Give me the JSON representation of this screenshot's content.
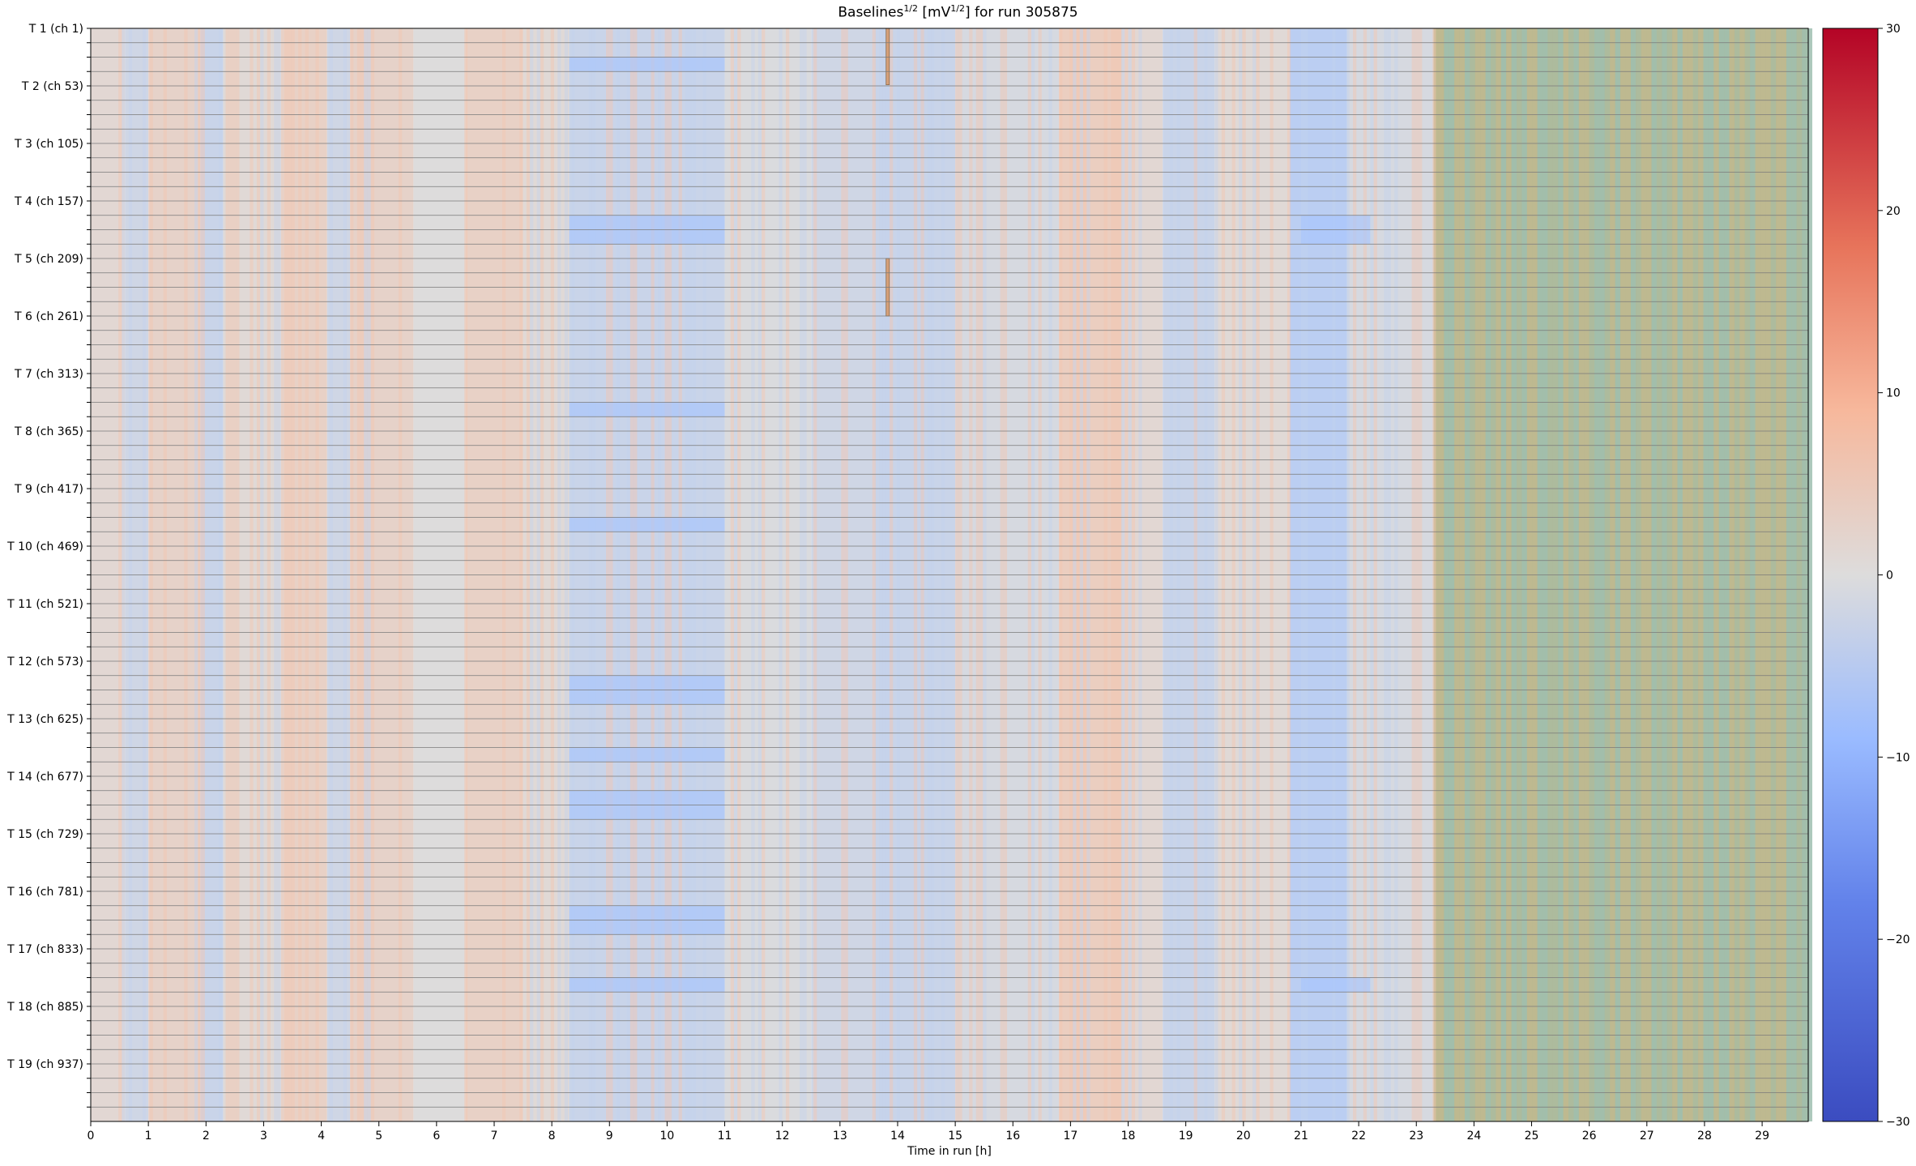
{
  "chart_data": {
    "type": "heatmap",
    "title": {
      "pre": "Baselines",
      "sup1": "1/2",
      "mid": " [mV",
      "sup2": "1/2",
      "post": "] for run 305875"
    },
    "xlabel": "Time in run [h]",
    "xlim": [
      0,
      29.8
    ],
    "x_ticks": [
      0,
      1,
      2,
      3,
      4,
      5,
      6,
      7,
      8,
      9,
      10,
      11,
      12,
      13,
      14,
      15,
      16,
      17,
      18,
      19,
      20,
      21,
      22,
      23,
      24,
      25,
      26,
      27,
      28,
      29
    ],
    "y_axis_inverted": true,
    "channels_total": 988,
    "channel_lines_every": 13,
    "y_tick_labels": [
      {
        "ch": 1,
        "label": "T 1 (ch 1)"
      },
      {
        "ch": 53,
        "label": "T 2 (ch 53)"
      },
      {
        "ch": 105,
        "label": "T 3 (ch 105)"
      },
      {
        "ch": 157,
        "label": "T 4 (ch 157)"
      },
      {
        "ch": 209,
        "label": "T 5 (ch 209)"
      },
      {
        "ch": 261,
        "label": "T 6 (ch 261)"
      },
      {
        "ch": 313,
        "label": "T 7 (ch 313)"
      },
      {
        "ch": 365,
        "label": "T 8 (ch 365)"
      },
      {
        "ch": 417,
        "label": "T 9 (ch 417)"
      },
      {
        "ch": 469,
        "label": "T 10 (ch 469)"
      },
      {
        "ch": 521,
        "label": "T 11 (ch 521)"
      },
      {
        "ch": 573,
        "label": "T 12 (ch 573)"
      },
      {
        "ch": 625,
        "label": "T 13 (ch 625)"
      },
      {
        "ch": 677,
        "label": "T 14 (ch 677)"
      },
      {
        "ch": 729,
        "label": "T 15 (ch 729)"
      },
      {
        "ch": 781,
        "label": "T 16 (ch 781)"
      },
      {
        "ch": 833,
        "label": "T 17 (ch 833)"
      },
      {
        "ch": 885,
        "label": "T 18 (ch 885)"
      },
      {
        "ch": 937,
        "label": "T 19 (ch 937)"
      }
    ],
    "colorbar": {
      "colormap": "coolwarm",
      "vmin": -30,
      "vmax": 30,
      "ticks": [
        -30,
        -20,
        -10,
        0,
        10,
        20,
        30
      ],
      "tick_labels": [
        "−30",
        "−20",
        "−10",
        "0",
        "10",
        "20",
        "30"
      ]
    },
    "background_column_pattern_hours": [
      {
        "x0": 0.0,
        "x1": 0.6,
        "value": 1.5
      },
      {
        "x0": 0.6,
        "x1": 1.0,
        "value": -2
      },
      {
        "x0": 1.0,
        "x1": 1.9,
        "value": 3
      },
      {
        "x0": 1.9,
        "x1": 2.3,
        "value": -3
      },
      {
        "x0": 2.3,
        "x1": 3.3,
        "value": 1
      },
      {
        "x0": 3.3,
        "x1": 4.1,
        "value": 3.5
      },
      {
        "x0": 4.1,
        "x1": 4.5,
        "value": -2
      },
      {
        "x0": 4.5,
        "x1": 5.6,
        "value": 3
      },
      {
        "x0": 5.6,
        "x1": 6.5,
        "value": 0
      },
      {
        "x0": 6.5,
        "x1": 7.5,
        "value": 3.5
      },
      {
        "x0": 7.5,
        "x1": 8.3,
        "value": 1
      },
      {
        "x0": 8.3,
        "x1": 11.0,
        "value": -3
      },
      {
        "x0": 11.0,
        "x1": 12.5,
        "value": -0.5
      },
      {
        "x0": 12.5,
        "x1": 13.6,
        "value": -2
      },
      {
        "x0": 13.6,
        "x1": 15.0,
        "value": -3
      },
      {
        "x0": 15.0,
        "x1": 16.8,
        "value": -1
      },
      {
        "x0": 16.8,
        "x1": 17.9,
        "value": 4.5
      },
      {
        "x0": 17.9,
        "x1": 18.6,
        "value": 1.5
      },
      {
        "x0": 18.6,
        "x1": 19.5,
        "value": -3
      },
      {
        "x0": 19.5,
        "x1": 20.8,
        "value": 1
      },
      {
        "x0": 20.8,
        "x1": 21.8,
        "value": -5
      },
      {
        "x0": 21.8,
        "x1": 23.3,
        "value": -1
      },
      {
        "x0": 23.3,
        "x1": 29.8,
        "value": "undefined (olive/teal striped region)"
      }
    ],
    "features": [
      {
        "desc": "blue bands",
        "x_range_h": [
          8.3,
          11.0
        ],
        "channel_groups": [
          1,
          4,
          7,
          9,
          12,
          13,
          14,
          16,
          17
        ],
        "approx_value": -8
      },
      {
        "desc": "blue patch",
        "x_range_h": [
          21.0,
          22.2
        ],
        "channel_groups": [
          4,
          17
        ],
        "approx_value": -8
      },
      {
        "desc": "vertical stripe",
        "x_range_h": [
          13.8,
          13.85
        ],
        "channel_ranges": [
          [
            1,
            52
          ],
          [
            209,
            261
          ]
        ],
        "approx_value": 8
      }
    ]
  }
}
